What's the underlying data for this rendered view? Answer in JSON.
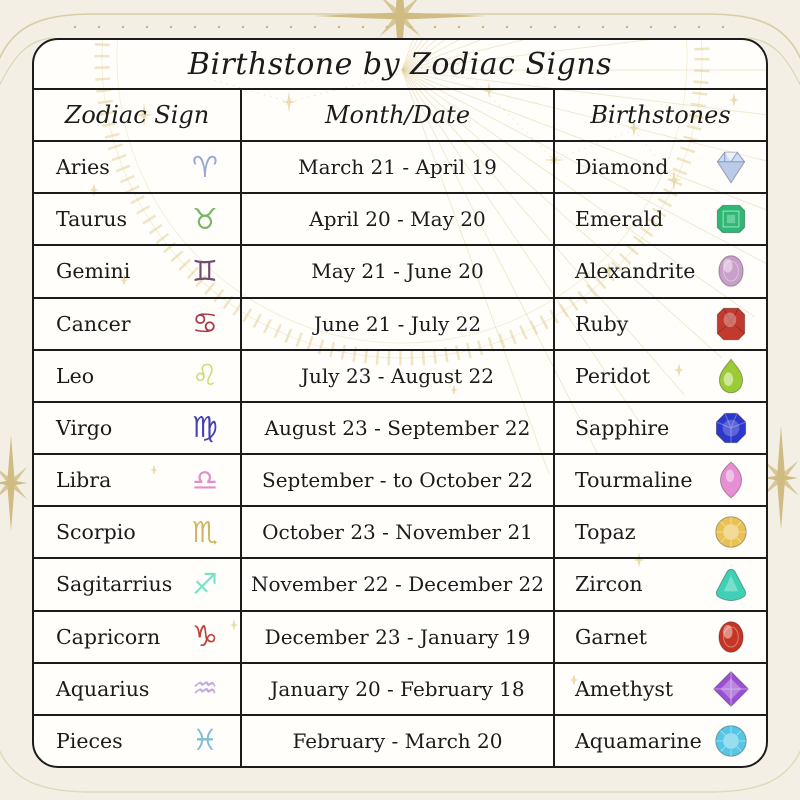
{
  "page": {
    "title": "Birthstone by Zodiac Signs",
    "background_color": "#f3efe5",
    "accent_gold": "#d2bf85",
    "border_color": "#1c1c1c"
  },
  "table": {
    "headers": {
      "zodiac": "Zodiac Sign",
      "month": "Month/Date",
      "birthstone": "Birthstones"
    },
    "rows": [
      {
        "sign": "Aries",
        "symbol": "♈",
        "symbol_color": "#94a9d2",
        "dates": "March 21 - April 19",
        "stone": "Diamond",
        "gem_shape": "diamond",
        "gem_color": "#cbdbf4"
      },
      {
        "sign": "Taurus",
        "symbol": "♉",
        "symbol_color": "#7cb768",
        "dates": "April 20 - May 20",
        "stone": "Emerald",
        "gem_shape": "emerald",
        "gem_color": "#2db873"
      },
      {
        "sign": "Gemini",
        "symbol": "♊",
        "symbol_color": "#6e4b70",
        "dates": "May 21 - June 20",
        "stone": "Alexandrite",
        "gem_shape": "oval",
        "gem_color": "#c89fc8"
      },
      {
        "sign": "Cancer",
        "symbol": "♋",
        "symbol_color": "#aa3a47",
        "dates": "June 21 - July 22",
        "stone": "Ruby",
        "gem_shape": "radiant",
        "gem_color": "#c23a2e"
      },
      {
        "sign": "Leo",
        "symbol": "♌",
        "symbol_color": "#c9dc72",
        "dates": "July 23 - August 22",
        "stone": "Peridot",
        "gem_shape": "pear",
        "gem_color": "#9ccc33"
      },
      {
        "sign": "Virgo",
        "symbol": "♍",
        "symbol_color": "#4543b0",
        "dates": "August 23 - September 22",
        "stone": "Sapphire",
        "gem_shape": "octagon",
        "gem_color": "#2c38cc"
      },
      {
        "sign": "Libra",
        "symbol": "♎",
        "symbol_color": "#e18fc9",
        "dates": "September - to October 22",
        "stone": "Tourmaline",
        "gem_shape": "marquise",
        "gem_color": "#e68fd2"
      },
      {
        "sign": "Scorpio",
        "symbol": "♏",
        "symbol_color": "#d0b765",
        "dates": "October 23 - November 21",
        "stone": "Topaz",
        "gem_shape": "round",
        "gem_color": "#eac254"
      },
      {
        "sign": "Sagitarrius",
        "symbol": "♐",
        "symbol_color": "#78e2c8",
        "dates": "November 22 - December 22",
        "stone": "Zircon",
        "gem_shape": "trillion",
        "gem_color": "#3ed1b5"
      },
      {
        "sign": "Capricorn",
        "symbol": "♑",
        "symbol_color": "#bf403a",
        "dates": "December 23 - January 19",
        "stone": "Garnet",
        "gem_shape": "oval",
        "gem_color": "#c63425"
      },
      {
        "sign": "Aquarius",
        "symbol": "♒",
        "symbol_color": "#c3aade",
        "dates": "January 20 - February 18",
        "stone": "Amethyst",
        "gem_shape": "princess",
        "gem_color": "#9a50d2"
      },
      {
        "sign": "Pieces",
        "symbol": "♓",
        "symbol_color": "#82bcd9",
        "dates": "February - March 20",
        "stone": "Aquamarine",
        "gem_shape": "round",
        "gem_color": "#55c6e6"
      }
    ]
  }
}
